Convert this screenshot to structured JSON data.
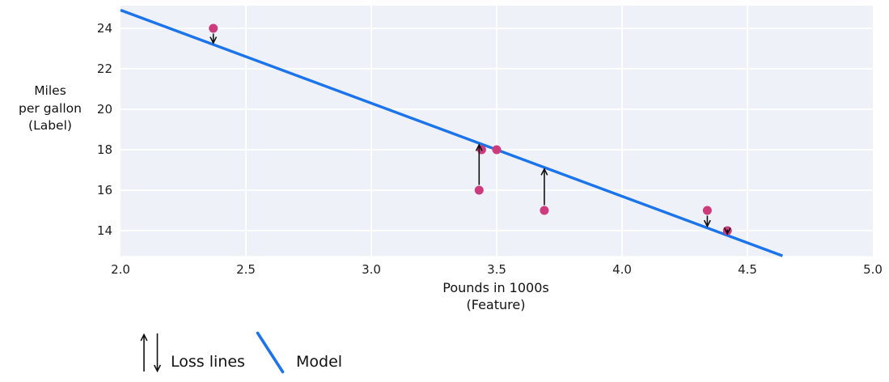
{
  "colors": {
    "plot_background": "#eef1f8",
    "gridline": "#ffffff",
    "model_line": "#1b74eb",
    "point": "#ce3b7d",
    "arrow": "#111111",
    "text": "#1a1a1a"
  },
  "chart_data": {
    "type": "scatter",
    "title": "",
    "xlabel": "Pounds in 1000s (Feature)",
    "ylabel": "Miles per gallon (Label)",
    "xlabel_lines": [
      "Pounds in 1000s",
      "(Feature)"
    ],
    "ylabel_lines": [
      "Miles",
      "per gallon",
      "(Label)"
    ],
    "xlim": [
      2.0,
      5.0
    ],
    "ylim": [
      12.74,
      25.12
    ],
    "x_ticks": [
      2.0,
      2.5,
      3.0,
      3.5,
      4.0,
      4.5,
      5.0
    ],
    "x_tick_labels": [
      "2.0",
      "2.5",
      "3.0",
      "3.5",
      "4.0",
      "4.5",
      "5.0"
    ],
    "y_ticks": [
      14,
      16,
      18,
      20,
      22,
      24
    ],
    "y_tick_labels": [
      "14",
      "16",
      "18",
      "20",
      "22",
      "24"
    ],
    "grid": true,
    "points": [
      {
        "x": 2.37,
        "y": 24
      },
      {
        "x": 3.43,
        "y": 16
      },
      {
        "x": 3.44,
        "y": 18
      },
      {
        "x": 3.5,
        "y": 18
      },
      {
        "x": 3.69,
        "y": 15
      },
      {
        "x": 4.34,
        "y": 15
      },
      {
        "x": 4.42,
        "y": 14
      }
    ],
    "model_line": {
      "slope": -4.6,
      "intercept": 34.1,
      "x_start": 2.0,
      "x_end": 4.64
    },
    "loss_arrows": [
      {
        "x": 2.37,
        "from_y": 24,
        "direction": "down"
      },
      {
        "x": 3.43,
        "from_y": 16,
        "direction": "up"
      },
      {
        "x": 3.69,
        "from_y": 15,
        "direction": "up"
      },
      {
        "x": 4.34,
        "from_y": 15,
        "direction": "down"
      },
      {
        "x": 4.42,
        "from_y": 14,
        "direction": "down"
      }
    ],
    "legend_position": "bottom-left",
    "legend": [
      {
        "symbol": "loss-arrows",
        "label": "Loss lines"
      },
      {
        "symbol": "model-line",
        "label": "Model"
      }
    ]
  }
}
